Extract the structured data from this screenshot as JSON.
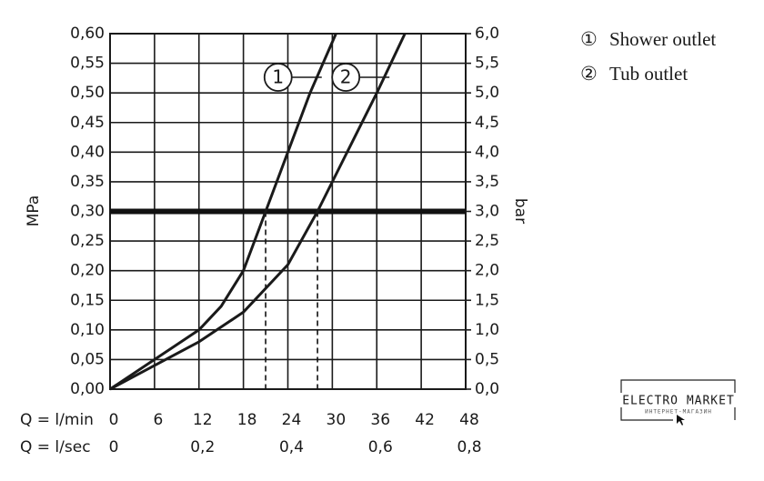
{
  "chart_data": {
    "type": "line",
    "y_label": "MPa",
    "y2_label": "bar",
    "x_label": "Q = l/min",
    "x2_label": "Q = l/sec",
    "xlim": [
      0,
      48
    ],
    "xticks": [
      0,
      6,
      12,
      18,
      24,
      30,
      36,
      42,
      48
    ],
    "x2lim": [
      0,
      0.8
    ],
    "x2ticks": [
      0,
      {
        "value": 0.2,
        "label": "0,2"
      },
      {
        "value": 0.4,
        "label": "0,4"
      },
      {
        "value": 0.6,
        "label": "0,6"
      },
      {
        "value": 0.8,
        "label": "0,8"
      }
    ],
    "ylim": [
      0,
      0.6
    ],
    "yticks": [
      {
        "value": 0,
        "label": "0,00"
      },
      {
        "value": 0.05,
        "label": "0,05"
      },
      {
        "value": 0.1,
        "label": "0,10"
      },
      {
        "value": 0.15,
        "label": "0,15"
      },
      {
        "value": 0.2,
        "label": "0,20"
      },
      {
        "value": 0.25,
        "label": "0,25"
      },
      {
        "value": 0.3,
        "label": "0,30"
      },
      {
        "value": 0.35,
        "label": "0,35"
      },
      {
        "value": 0.4,
        "label": "0,40"
      },
      {
        "value": 0.45,
        "label": "0,45"
      },
      {
        "value": 0.5,
        "label": "0,50"
      },
      {
        "value": 0.55,
        "label": "0,55"
      },
      {
        "value": 0.6,
        "label": "0,60"
      }
    ],
    "y2lim": [
      0,
      6
    ],
    "y2ticks": [
      {
        "value": 0,
        "label": "0,0"
      },
      {
        "value": 0.5,
        "label": "0,5"
      },
      {
        "value": 1,
        "label": "1,0"
      },
      {
        "value": 1.5,
        "label": "1,5"
      },
      {
        "value": 2,
        "label": "2,0"
      },
      {
        "value": 2.5,
        "label": "2,5"
      },
      {
        "value": 3,
        "label": "3,0"
      },
      {
        "value": 3.5,
        "label": "3,5"
      },
      {
        "value": 4,
        "label": "4,0"
      },
      {
        "value": 4.5,
        "label": "4,5"
      },
      {
        "value": 5,
        "label": "5,0"
      },
      {
        "value": 5.5,
        "label": "5,5"
      },
      {
        "value": 6,
        "label": "6,0"
      }
    ],
    "grid": true,
    "reference_line": 0.3,
    "drop_lines_x": [
      21,
      28
    ],
    "series": [
      {
        "name": "Shower outlet",
        "marker": "①",
        "label": "1",
        "color": "#1a1a1a",
        "x": [
          0,
          6,
          12,
          15,
          18,
          21,
          24,
          27,
          30.5
        ],
        "values": [
          0,
          0.05,
          0.1,
          0.14,
          0.2,
          0.3,
          0.4,
          0.5,
          0.6
        ]
      },
      {
        "name": "Tub outlet",
        "marker": "②",
        "label": "2",
        "color": "#1a1a1a",
        "x": [
          0,
          6,
          12,
          18,
          24,
          28,
          32,
          36,
          39.8
        ],
        "values": [
          0,
          0.04,
          0.08,
          0.13,
          0.21,
          0.3,
          0.4,
          0.5,
          0.6
        ]
      }
    ]
  },
  "watermark": {
    "title": "ELECTRO MARKET",
    "subtitle": "ИНТЕРНЕТ-МАГАЗИН"
  }
}
